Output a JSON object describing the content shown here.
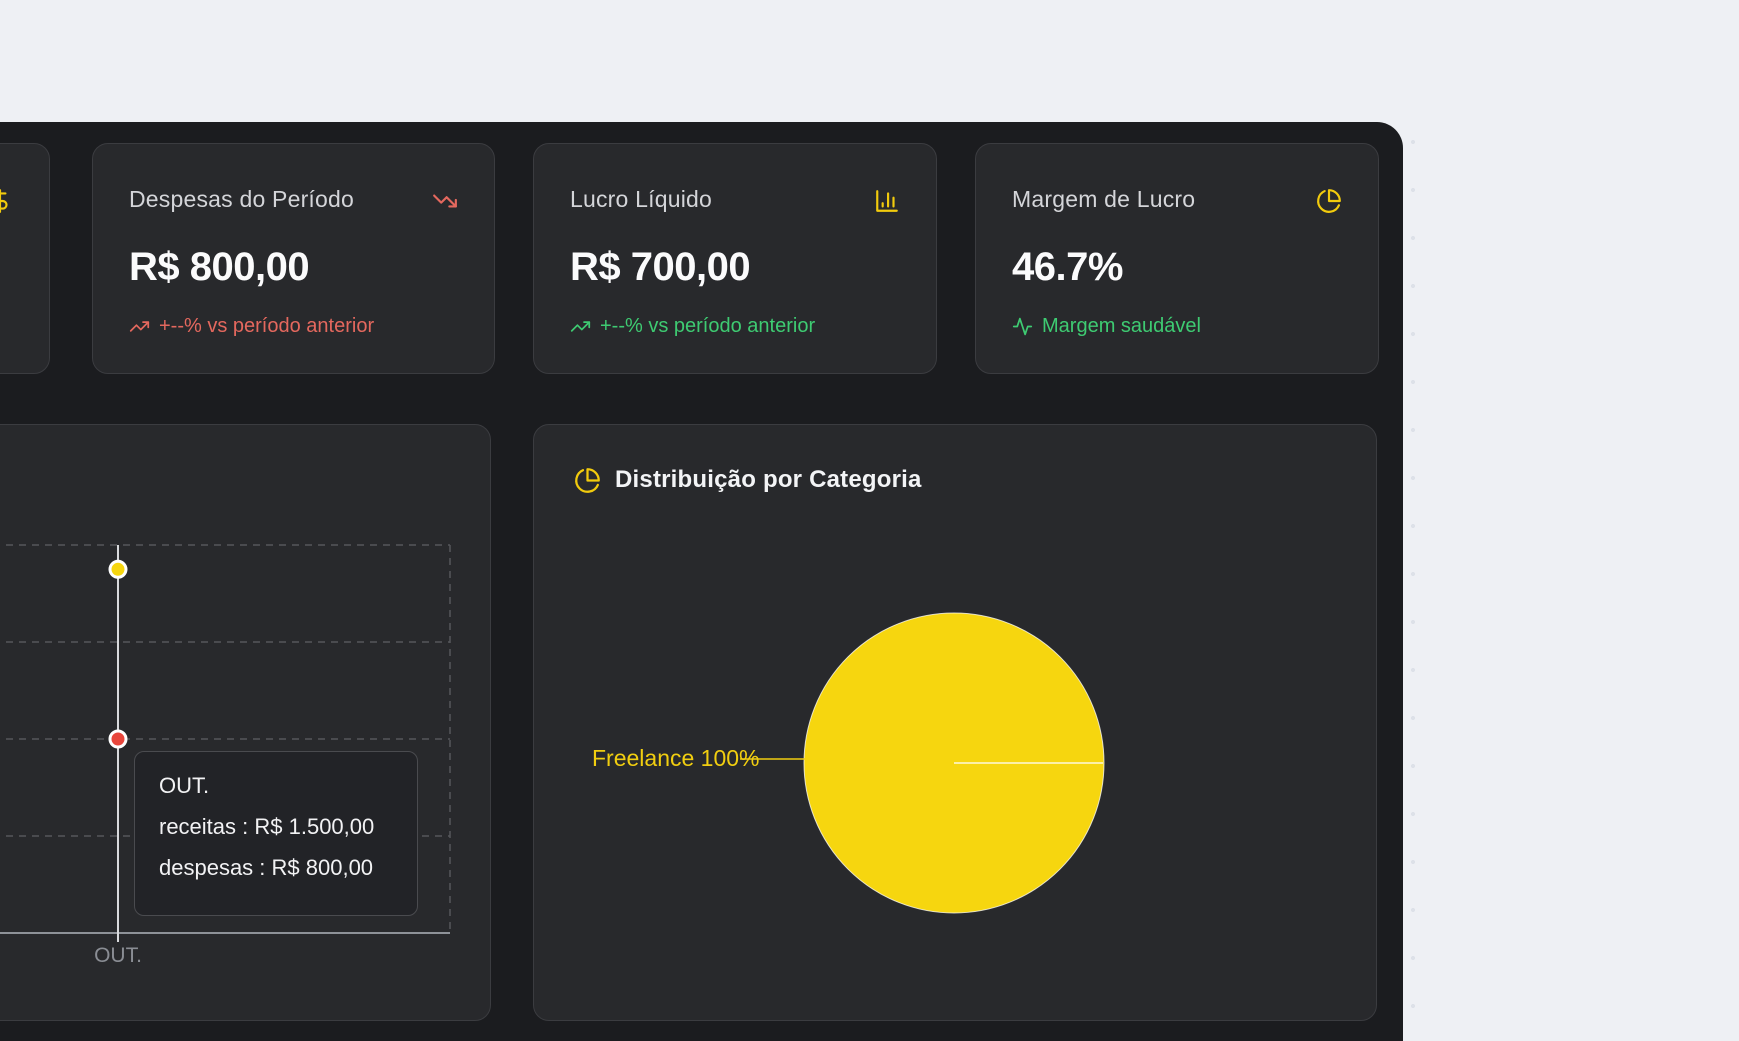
{
  "theme": {
    "background_light": "#eef0f4",
    "panel_bg": "#1b1c1f",
    "card_bg": "#28292c",
    "card_border": "#3b3c40",
    "accent_yellow": "#f2cb0d",
    "pie_yellow": "#f6d60f",
    "positive_green": "#3ecb72",
    "negative_red": "#e4685e",
    "dot_red": "#e8463c",
    "text_primary": "#fbfbfc",
    "text_secondary": "#d4d5d9",
    "axis_gray": "#8a8d94"
  },
  "stat_cards": [
    {
      "header_icon": "dollar-sign-icon"
    },
    {
      "title": "Despesas do Período",
      "value": "R$ 800,00",
      "header_icon": "trending-down-icon",
      "trend_icon": "trending-up-icon",
      "trend_text": "+--% vs período anterior",
      "trend_color": "#e4685e"
    },
    {
      "title": "Lucro Líquido",
      "value": "R$ 700,00",
      "header_icon": "bar-chart-icon",
      "trend_icon": "trending-up-icon",
      "trend_text": "+--% vs período anterior",
      "trend_color": "#3ecb72"
    },
    {
      "title": "Margem de Lucro",
      "value": "46.7%",
      "header_icon": "pie-chart-icon",
      "trend_icon": "activity-icon",
      "trend_text": "Margem saudável",
      "trend_color": "#3ecb72"
    }
  ],
  "chart_data": [
    {
      "type": "line",
      "x": [
        "OUT."
      ],
      "series": [
        {
          "name": "receitas",
          "values": [
            1500
          ],
          "color": "#f6d60f"
        },
        {
          "name": "despesas",
          "values": [
            800
          ],
          "color": "#e8463c"
        }
      ],
      "ylim": [
        0,
        1600
      ],
      "grid": "dashed-horizontal",
      "legend": "none",
      "tooltip": {
        "label": "OUT.",
        "rows": [
          "receitas : R$ 1.500,00",
          "despesas : R$ 800,00"
        ]
      }
    },
    {
      "type": "pie",
      "title": "Distribuição por Categoria",
      "slices": [
        {
          "label": "Freelance",
          "value": 100,
          "color": "#f6d60f"
        }
      ],
      "label_text": "Freelance 100%",
      "legend": "none"
    }
  ]
}
